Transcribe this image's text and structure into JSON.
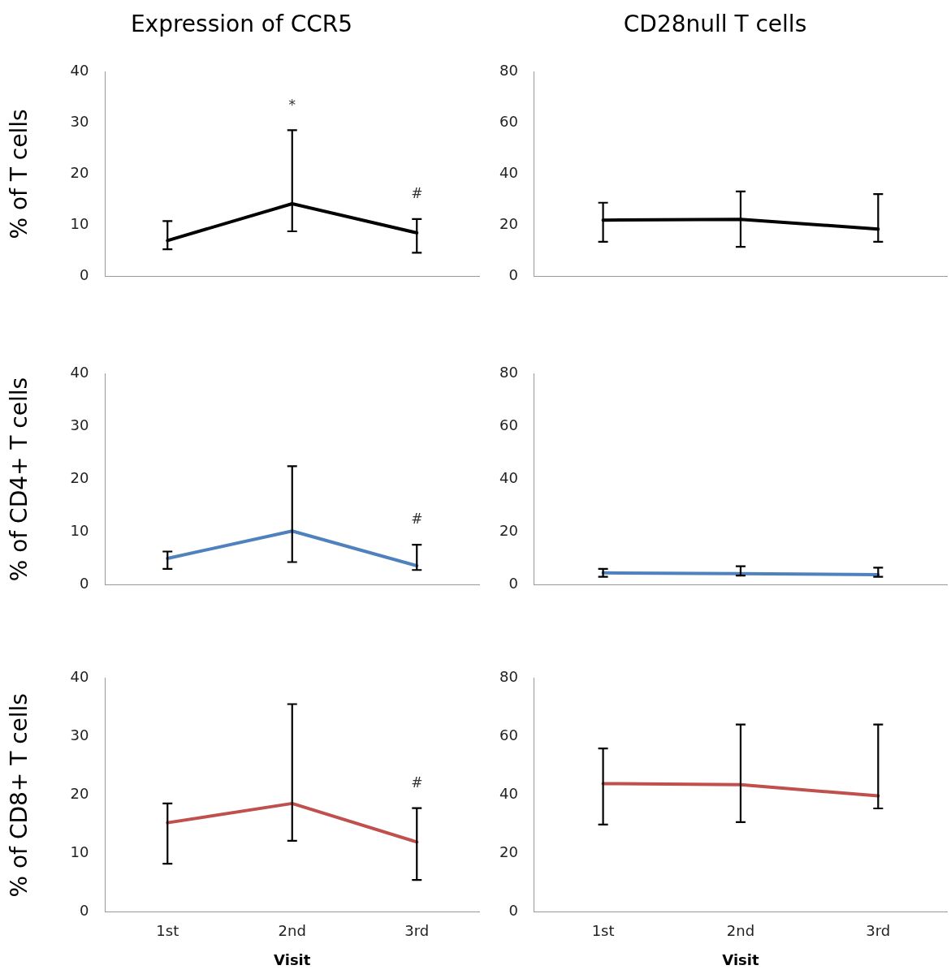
{
  "chart_data": [
    {
      "type": "line",
      "title": "Expression of CCR5",
      "ylabel": "% of T cells",
      "categories": [
        null,
        null,
        null
      ],
      "ylim": [
        0,
        40
      ],
      "yticks": [
        0,
        10,
        20,
        30,
        40
      ],
      "marker": "none",
      "series": [
        {
          "color": "#000000",
          "values": [
            7,
            14.2,
            8.5
          ],
          "errors": [
            [
              5.3,
              10.8
            ],
            [
              8.8,
              28.6
            ],
            [
              4.6,
              11.2
            ]
          ]
        }
      ],
      "annotations": [
        "*",
        "#"
      ]
    },
    {
      "type": "line",
      "title": "CD28null T cells",
      "categories": [
        null,
        null,
        null
      ],
      "ylim": [
        0,
        80
      ],
      "yticks": [
        0,
        20,
        40,
        60,
        80
      ],
      "marker": "none",
      "series": [
        {
          "color": "#000000",
          "values": [
            22,
            22.3,
            18.5
          ],
          "errors": [
            [
              13.5,
              28.8
            ],
            [
              11.5,
              33.2
            ],
            [
              13.5,
              32.2
            ]
          ]
        }
      ]
    },
    {
      "type": "line",
      "ylabel": "% of CD4+ T cells",
      "categories": [
        null,
        null,
        null
      ],
      "ylim": [
        0,
        40
      ],
      "yticks": [
        0,
        10,
        20,
        30,
        40
      ],
      "marker": "none",
      "series": [
        {
          "color": "#4f81bd",
          "values": [
            5,
            10.2,
            3.6
          ],
          "errors": [
            [
              3,
              6.3
            ],
            [
              4.3,
              22.5
            ],
            [
              2.8,
              7.6
            ]
          ]
        }
      ],
      "annotations": [
        "#"
      ]
    },
    {
      "type": "line",
      "categories": [
        null,
        null,
        null
      ],
      "ylim": [
        0,
        80
      ],
      "yticks": [
        0,
        20,
        40,
        60,
        80
      ],
      "marker": "none",
      "series": [
        {
          "color": "#4f81bd",
          "values": [
            4.5,
            4.2,
            3.8
          ],
          "errors": [
            [
              3,
              6
            ],
            [
              3.5,
              7
            ],
            [
              3,
              6.5
            ]
          ]
        }
      ]
    },
    {
      "type": "line",
      "ylabel": "% of CD8+ T cells",
      "xlabel": "Visit",
      "categories": [
        "1st",
        "2nd",
        "3rd"
      ],
      "ylim": [
        0,
        40
      ],
      "yticks": [
        0,
        10,
        20,
        30,
        40
      ],
      "marker": "none",
      "series": [
        {
          "color": "#c0504d",
          "values": [
            15.3,
            18.6,
            12
          ],
          "errors": [
            [
              8.3,
              18.6
            ],
            [
              12.2,
              35.6
            ],
            [
              5.5,
              17.8
            ]
          ]
        }
      ],
      "annotations": [
        "#"
      ]
    },
    {
      "type": "line",
      "xlabel": "Visit",
      "categories": [
        "1st",
        "2nd",
        "3rd"
      ],
      "ylim": [
        0,
        80
      ],
      "yticks": [
        0,
        20,
        40,
        60,
        80
      ],
      "marker": "none",
      "series": [
        {
          "color": "#c0504d",
          "values": [
            44,
            43.6,
            39.8
          ],
          "errors": [
            [
              30,
              56
            ],
            [
              30.8,
              64.2
            ],
            [
              35.5,
              64.2
            ]
          ]
        }
      ]
    }
  ]
}
